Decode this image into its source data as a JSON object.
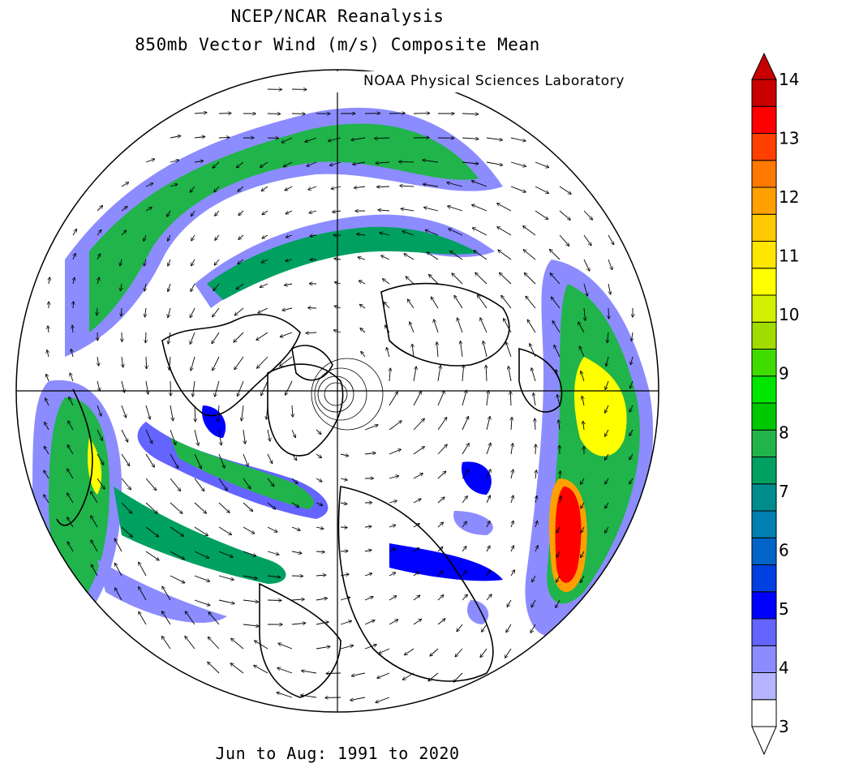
{
  "title": {
    "line1": "NCEP/NCAR Reanalysis",
    "line2": "850mb Vector Wind (m/s) Composite Mean"
  },
  "credit": "NOAA Physical Sciences Laboratory",
  "footer": "Jun to Aug: 1991 to 2020",
  "map": {
    "projection": "north-polar-stereographic",
    "field": "850mb vector wind speed (shaded) with wind direction arrows",
    "features": [
      "coastlines",
      "country-borders",
      "us-state-borders",
      "crosshair-meridians"
    ]
  },
  "colorbar": {
    "labels": [
      "14",
      "13",
      "12",
      "11",
      "10",
      "9",
      "8",
      "7",
      "6",
      "5",
      "4",
      "3"
    ],
    "levels": [
      3,
      3.5,
      4,
      4.5,
      5,
      5.5,
      6,
      6.5,
      7,
      7.5,
      8,
      8.5,
      9,
      9.5,
      10,
      10.5,
      11,
      11.5,
      12,
      12.5,
      13,
      13.5,
      14
    ],
    "colors": [
      "#ffffff",
      "#b4b4ff",
      "#8c8cff",
      "#6464ff",
      "#0000ff",
      "#0040e0",
      "#0064c8",
      "#0080b0",
      "#008c8c",
      "#00a060",
      "#20b44a",
      "#00c800",
      "#00e600",
      "#40dc00",
      "#a0dc00",
      "#d2f000",
      "#ffff00",
      "#ffe600",
      "#ffc800",
      "#ffa000",
      "#ff7800",
      "#ff4000",
      "#ff0000",
      "#c80000"
    ],
    "min_arrow": "below 3",
    "max_arrow": "above 14"
  }
}
